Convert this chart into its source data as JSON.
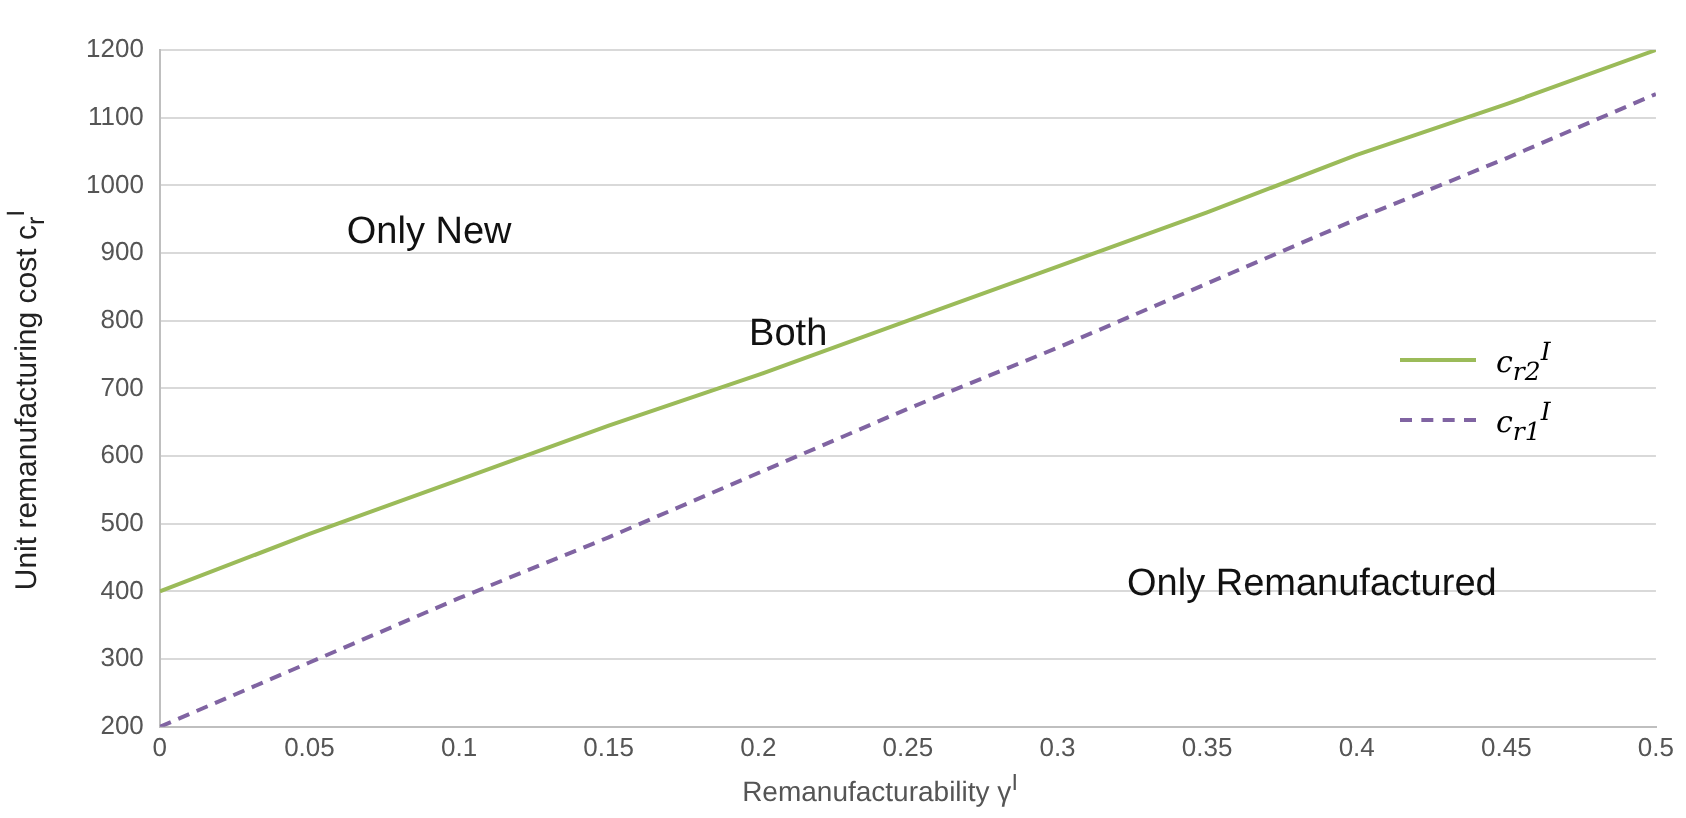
{
  "chart_data": {
    "type": "line",
    "xlabel": "Remanufacturability γ$^{I}$",
    "ylabel": "Unit remanufacturing cost c$_{r}$$^{I}$",
    "x": [
      0,
      0.05,
      0.1,
      0.15,
      0.2,
      0.25,
      0.3,
      0.35,
      0.4,
      0.45,
      0.5
    ],
    "series": [
      {
        "name": "c$_{r2}$$^{I}$",
        "color": "#9bbb59",
        "line_style": "solid",
        "values": [
          400,
          485,
          565,
          645,
          720,
          800,
          880,
          960,
          1045,
          1120,
          1200
        ]
      },
      {
        "name": "c$_{r1}$$^{I}$",
        "color": "#8064a2",
        "line_style": "dashed",
        "values": [
          200,
          295,
          390,
          480,
          575,
          670,
          760,
          855,
          950,
          1040,
          1135
        ]
      }
    ],
    "xlim": [
      0,
      0.5
    ],
    "xticks": [
      0,
      0.05,
      0.1,
      0.15,
      0.2,
      0.25,
      0.3,
      0.35,
      0.4,
      0.45,
      0.5
    ],
    "ylim": [
      200,
      1200
    ],
    "yticks": [
      200,
      300,
      400,
      500,
      600,
      700,
      800,
      900,
      1000,
      1100,
      1200
    ],
    "grid": "y",
    "legend": "right",
    "marker": "none",
    "annotations": [
      "Only New",
      "Both",
      "Only Remanufactured"
    ]
  }
}
